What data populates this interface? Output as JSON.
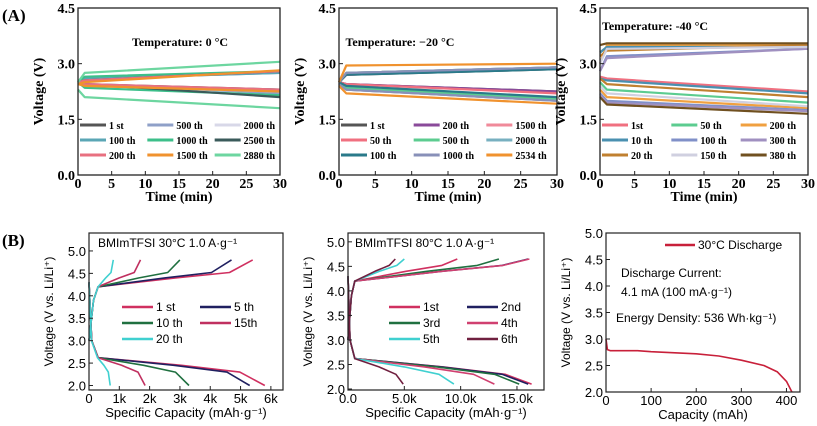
{
  "panel_labels": {
    "a": "(A)",
    "b": "(B)"
  },
  "chart_data": [
    {
      "type": "line",
      "style": "serif",
      "title": "Temperature: 0 °C",
      "xlabel": "Time (min)",
      "ylabel": "Voltage (V)",
      "xlim": [
        0,
        30
      ],
      "ylim": [
        0,
        4.5
      ],
      "xticks": [
        0,
        5,
        10,
        15,
        20,
        25,
        30
      ],
      "xtick_labels": [
        "0",
        "5",
        "10",
        "15",
        "20",
        "25",
        "30"
      ],
      "yticks": [
        0,
        1.5,
        3.0,
        4.5
      ],
      "ytick_labels": [
        "0.0",
        "1.5",
        "3.0",
        "4.5"
      ],
      "legend_columns": 3,
      "series": [
        {
          "name": "1 st",
          "color": "#555555",
          "charge": [
            2.5,
            2.55,
            2.8
          ],
          "discharge": [
            2.5,
            2.45,
            2.3
          ]
        },
        {
          "name": "500 th",
          "color": "#8fa0c8",
          "charge": [
            2.5,
            2.6,
            2.75
          ],
          "discharge": [
            2.5,
            2.45,
            2.2
          ]
        },
        {
          "name": "2000 th",
          "color": "#d8d8e8",
          "charge": [
            2.5,
            2.6,
            2.8
          ],
          "discharge": [
            2.5,
            2.4,
            2.25
          ]
        },
        {
          "name": "100 th",
          "color": "#5aa6b5",
          "charge": [
            2.5,
            2.6,
            2.75
          ],
          "discharge": [
            2.5,
            2.4,
            2.3
          ]
        },
        {
          "name": "1000 th",
          "color": "#3cbf8a",
          "charge": [
            2.5,
            2.65,
            2.8
          ],
          "discharge": [
            2.5,
            2.35,
            2.15
          ]
        },
        {
          "name": "2500 th",
          "color": "#3a5a5a",
          "charge": [
            2.5,
            2.55,
            2.8
          ],
          "discharge": [
            2.5,
            2.45,
            2.1
          ]
        },
        {
          "name": "200 th",
          "color": "#e87080",
          "charge": [
            2.5,
            2.55,
            2.8
          ],
          "discharge": [
            2.5,
            2.45,
            2.3
          ]
        },
        {
          "name": "1500 th",
          "color": "#f0922e",
          "charge": [
            2.45,
            2.5,
            2.82
          ],
          "discharge": [
            2.45,
            2.4,
            2.25
          ]
        },
        {
          "name": "2880 th",
          "color": "#6dd6a0",
          "charge": [
            2.5,
            2.75,
            3.05
          ],
          "discharge": [
            2.3,
            2.1,
            1.8
          ]
        }
      ]
    },
    {
      "type": "line",
      "style": "serif",
      "title": "Temperature: −20 °C",
      "xlabel": "Time (min)",
      "ylabel": "Voltage (V)",
      "xlim": [
        0,
        30
      ],
      "ylim": [
        0,
        4.5
      ],
      "xticks": [
        0,
        5,
        10,
        15,
        20,
        25,
        30
      ],
      "xtick_labels": [
        "0",
        "5",
        "10",
        "15",
        "20",
        "25",
        "30"
      ],
      "yticks": [
        0,
        1.5,
        3.0,
        4.5
      ],
      "ytick_labels": [
        "0.0",
        "1.5",
        "3.0",
        "4.5"
      ],
      "legend_columns": 3,
      "series": [
        {
          "name": "1 st",
          "color": "#555555",
          "charge": [
            2.5,
            2.7,
            2.85
          ],
          "discharge": [
            2.5,
            2.45,
            2.25
          ]
        },
        {
          "name": "200 th",
          "color": "#8a4a9a",
          "charge": [
            2.5,
            2.7,
            2.9
          ],
          "discharge": [
            2.5,
            2.45,
            2.25
          ]
        },
        {
          "name": "1500 th",
          "color": "#f08a9a",
          "charge": [
            2.5,
            2.75,
            2.9
          ],
          "discharge": [
            2.45,
            2.3,
            2.0
          ]
        },
        {
          "name": "50 th",
          "color": "#f07080",
          "charge": [
            2.5,
            2.7,
            2.9
          ],
          "discharge": [
            2.5,
            2.45,
            2.2
          ]
        },
        {
          "name": "500 th",
          "color": "#5ccc90",
          "charge": [
            2.5,
            2.75,
            2.9
          ],
          "discharge": [
            2.45,
            2.35,
            2.05
          ]
        },
        {
          "name": "2000 th",
          "color": "#78b0c0",
          "charge": [
            2.5,
            2.75,
            2.9
          ],
          "discharge": [
            2.45,
            2.3,
            2.0
          ]
        },
        {
          "name": "100 th",
          "color": "#2a7a8a",
          "charge": [
            2.5,
            2.7,
            2.85
          ],
          "discharge": [
            2.5,
            2.4,
            2.1
          ]
        },
        {
          "name": "1000 th",
          "color": "#8890b8",
          "charge": [
            2.5,
            2.75,
            2.9
          ],
          "discharge": [
            2.45,
            2.3,
            2.0
          ]
        },
        {
          "name": "2534 th",
          "color": "#f0922e",
          "charge": [
            2.5,
            2.95,
            3.0
          ],
          "discharge": [
            2.4,
            2.2,
            1.92
          ]
        }
      ]
    },
    {
      "type": "line",
      "style": "serif",
      "title": "Temperature: -40 °C",
      "xlabel": "Time (min)",
      "ylabel": "Voltage (V)",
      "xlim": [
        0,
        30
      ],
      "ylim": [
        0,
        4.5
      ],
      "xticks": [
        0,
        5,
        10,
        15,
        20,
        25,
        30
      ],
      "xtick_labels": [
        "0",
        "5",
        "10",
        "15",
        "20",
        "25",
        "30"
      ],
      "yticks": [
        0,
        1.5,
        3.0,
        4.5
      ],
      "ytick_labels": [
        "0.0",
        "1.5",
        "3.0",
        "4.5"
      ],
      "legend_columns": 3,
      "series": [
        {
          "name": "1st",
          "color": "#f07080",
          "charge": [
            3.3,
            3.45,
            3.45
          ],
          "discharge": [
            2.65,
            2.6,
            2.25
          ]
        },
        {
          "name": "50 th",
          "color": "#5ccc90",
          "charge": [
            3.3,
            3.45,
            3.45
          ],
          "discharge": [
            2.5,
            2.3,
            1.95
          ]
        },
        {
          "name": "200 th",
          "color": "#f0a040",
          "charge": [
            3.0,
            3.5,
            3.5
          ],
          "discharge": [
            2.3,
            2.1,
            1.8
          ]
        },
        {
          "name": "10 th",
          "color": "#4a90b0",
          "charge": [
            3.3,
            3.45,
            3.45
          ],
          "discharge": [
            2.6,
            2.55,
            2.2
          ]
        },
        {
          "name": "100 th",
          "color": "#8090c8",
          "charge": [
            2.8,
            3.2,
            3.4
          ],
          "discharge": [
            2.2,
            2.0,
            1.75
          ]
        },
        {
          "name": "300 th",
          "color": "#a090c0",
          "charge": [
            2.8,
            3.15,
            3.4
          ],
          "discharge": [
            2.15,
            1.95,
            1.72
          ]
        },
        {
          "name": "20 th",
          "color": "#c08030",
          "charge": [
            3.2,
            3.35,
            3.5
          ],
          "discharge": [
            2.6,
            2.45,
            2.1
          ]
        },
        {
          "name": "150 th",
          "color": "#d0d0e0",
          "charge": [
            3.0,
            3.4,
            3.45
          ],
          "discharge": [
            2.4,
            2.2,
            1.85
          ]
        },
        {
          "name": "380 th",
          "color": "#705020",
          "charge": [
            3.5,
            3.55,
            3.55
          ],
          "discharge": [
            2.1,
            1.9,
            1.65
          ]
        }
      ]
    },
    {
      "type": "line",
      "style": "sans",
      "title": "BMImTFSI 30°C  1.0 A·g⁻¹",
      "xlabel": "Specific Capacity (mAh·g⁻¹)",
      "ylabel": "Voltage (V vs. Li/Li⁺)",
      "xlim": [
        0,
        6400
      ],
      "ylim": [
        1.9,
        5.4
      ],
      "xticks": [
        0,
        1000,
        2000,
        3000,
        4000,
        5000,
        6000
      ],
      "xtick_labels": [
        "0",
        "1k",
        "2k",
        "3k",
        "4k",
        "5k",
        "6k"
      ],
      "yticks": [
        2.0,
        2.5,
        3.0,
        3.5,
        4.0,
        4.5,
        5.0
      ],
      "ytick_labels": [
        "2.0",
        "2.5",
        "3.0",
        "3.5",
        "4.0",
        "4.5",
        "5.0"
      ],
      "legend_columns": 2,
      "knee_capacity": 300,
      "charge_cutoff_v": 4.8,
      "discharge_cutoff_v": 2.0,
      "series": [
        {
          "name": "1 st",
          "color": "#d03060",
          "charge_capacity": 5400,
          "discharge_capacity": 5800
        },
        {
          "name": "5 th",
          "color": "#202060",
          "charge_capacity": 4700,
          "discharge_capacity": 5300
        },
        {
          "name": "10 th",
          "color": "#207040",
          "charge_capacity": 3000,
          "discharge_capacity": 3300
        },
        {
          "name": "15th",
          "color": "#c03060",
          "charge_capacity": 1700,
          "discharge_capacity": 1850
        },
        {
          "name": "20 th",
          "color": "#40d0d0",
          "charge_capacity": 800,
          "discharge_capacity": 700
        }
      ]
    },
    {
      "type": "line",
      "style": "sans",
      "title": "BMImTFSI 80°C  1.0 A·g⁻¹",
      "xlabel": "Specific Capacity (mAh·g⁻¹)",
      "ylabel": "Voltage (V vs. Li/Li⁺)",
      "xlim": [
        0,
        17400
      ],
      "ylim": [
        1.98,
        5.18
      ],
      "xticks": [
        0,
        5000,
        10000,
        15000
      ],
      "xtick_labels": [
        "0.0",
        "5.0k",
        "10.0k",
        "15.0k"
      ],
      "yticks": [
        2.0,
        2.5,
        3.0,
        3.5,
        4.0,
        4.5,
        5.0
      ],
      "ytick_labels": [
        "2.0",
        "2.5",
        "3.0",
        "3.5",
        "4.0",
        "4.5",
        "5.0"
      ],
      "legend_columns": 2,
      "knee_capacity": 600,
      "charge_cutoff_v": 4.65,
      "discharge_cutoff_v": 2.1,
      "series": [
        {
          "name": "1st",
          "color": "#d03060",
          "charge_capacity": 9700,
          "discharge_capacity": 16300
        },
        {
          "name": "2nd",
          "color": "#202060",
          "charge_capacity": 16000,
          "discharge_capacity": 16000
        },
        {
          "name": "3rd",
          "color": "#207040",
          "charge_capacity": 13400,
          "discharge_capacity": 15200
        },
        {
          "name": "4th",
          "color": "#d04070",
          "charge_capacity": 16100,
          "discharge_capacity": 13000
        },
        {
          "name": "5th",
          "color": "#40d0d0",
          "charge_capacity": 5000,
          "discharge_capacity": 9400
        },
        {
          "name": "6th",
          "color": "#702040",
          "charge_capacity": 4200,
          "discharge_capacity": 4900
        }
      ]
    },
    {
      "type": "line",
      "style": "sans",
      "title": "",
      "xlabel": "Capacity (mAh)",
      "ylabel": "Voltage (V vs. Li/Li⁺)",
      "xlim": [
        0,
        430
      ],
      "ylim": [
        2.0,
        5.0
      ],
      "xticks": [
        0,
        100,
        200,
        300,
        400
      ],
      "xtick_labels": [
        "0",
        "100",
        "200",
        "300",
        "400"
      ],
      "yticks": [
        2.0,
        2.5,
        3.0,
        3.5,
        4.0,
        4.5,
        5.0
      ],
      "ytick_labels": [
        "2.0",
        "2.5",
        "3.0",
        "3.5",
        "4.0",
        "4.5",
        "5.0"
      ],
      "legend_columns": 1,
      "annotations": [
        "Discharge Current:",
        "4.1 mA (100 mA·g⁻¹)",
        "Energy Density: 536 Wh·kg⁻¹)"
      ],
      "series": [
        {
          "name": "30°C  Discharge",
          "color": "#c8203a",
          "points": [
            [
              0,
              3.0
            ],
            [
              3,
              2.8
            ],
            [
              10,
              2.78
            ],
            [
              70,
              2.78
            ],
            [
              100,
              2.76
            ],
            [
              200,
              2.72
            ],
            [
              250,
              2.68
            ],
            [
              300,
              2.6
            ],
            [
              350,
              2.5
            ],
            [
              380,
              2.38
            ],
            [
              400,
              2.2
            ],
            [
              412,
              2.0
            ]
          ]
        }
      ]
    }
  ]
}
